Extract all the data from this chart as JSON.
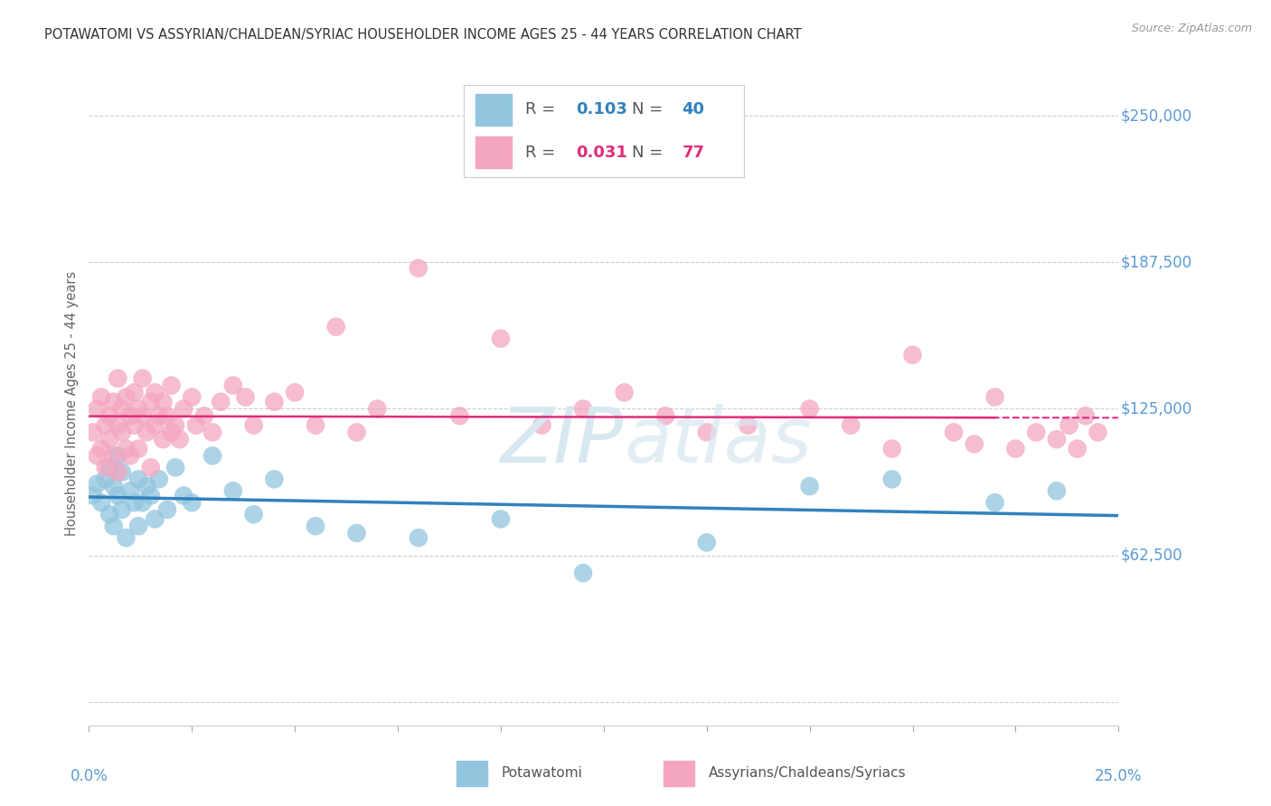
{
  "title": "POTAWATOMI VS ASSYRIAN/CHALDEAN/SYRIAC HOUSEHOLDER INCOME AGES 25 - 44 YEARS CORRELATION CHART",
  "source": "Source: ZipAtlas.com",
  "ylabel": "Householder Income Ages 25 - 44 years",
  "xlim": [
    0.0,
    0.25
  ],
  "ylim": [
    -10000,
    265000
  ],
  "yticks": [
    0,
    62500,
    125000,
    187500,
    250000
  ],
  "ytick_labels": [
    "",
    "$62,500",
    "$125,000",
    "$187,500",
    "$250,000"
  ],
  "xticks": [
    0.0,
    0.025,
    0.05,
    0.075,
    0.1,
    0.125,
    0.15,
    0.175,
    0.2,
    0.225,
    0.25
  ],
  "R_blue": 0.103,
  "N_blue": 40,
  "R_pink": 0.031,
  "N_pink": 77,
  "blue_color": "#92c5de",
  "pink_color": "#f4a6c0",
  "blue_line_color": "#3182bd",
  "pink_line_color": "#de2d7a",
  "background_color": "#ffffff",
  "grid_color": "#cccccc",
  "title_color": "#333333",
  "axis_label_color": "#666666",
  "right_label_color": "#5b9bd5",
  "watermark_color": "#d8e8f0",
  "blue_x": [
    0.001,
    0.002,
    0.003,
    0.004,
    0.005,
    0.005,
    0.006,
    0.006,
    0.007,
    0.007,
    0.008,
    0.008,
    0.009,
    0.01,
    0.011,
    0.012,
    0.012,
    0.013,
    0.014,
    0.015,
    0.016,
    0.017,
    0.019,
    0.021,
    0.023,
    0.025,
    0.03,
    0.035,
    0.04,
    0.045,
    0.055,
    0.065,
    0.08,
    0.1,
    0.12,
    0.15,
    0.175,
    0.195,
    0.22,
    0.235
  ],
  "blue_y": [
    88000,
    93000,
    85000,
    95000,
    80000,
    100000,
    92000,
    75000,
    88000,
    105000,
    82000,
    98000,
    70000,
    90000,
    85000,
    95000,
    75000,
    85000,
    92000,
    88000,
    78000,
    95000,
    82000,
    100000,
    88000,
    85000,
    105000,
    90000,
    80000,
    95000,
    75000,
    72000,
    70000,
    78000,
    55000,
    68000,
    92000,
    95000,
    85000,
    90000
  ],
  "pink_x": [
    0.001,
    0.002,
    0.002,
    0.003,
    0.003,
    0.004,
    0.004,
    0.005,
    0.005,
    0.006,
    0.006,
    0.007,
    0.007,
    0.007,
    0.008,
    0.008,
    0.009,
    0.009,
    0.01,
    0.01,
    0.011,
    0.011,
    0.012,
    0.012,
    0.013,
    0.013,
    0.014,
    0.015,
    0.015,
    0.016,
    0.016,
    0.017,
    0.018,
    0.018,
    0.019,
    0.02,
    0.02,
    0.021,
    0.022,
    0.023,
    0.025,
    0.026,
    0.028,
    0.03,
    0.032,
    0.035,
    0.038,
    0.04,
    0.045,
    0.05,
    0.055,
    0.06,
    0.065,
    0.07,
    0.08,
    0.09,
    0.1,
    0.11,
    0.12,
    0.13,
    0.14,
    0.15,
    0.16,
    0.175,
    0.185,
    0.195,
    0.2,
    0.21,
    0.215,
    0.22,
    0.225,
    0.23,
    0.235,
    0.238,
    0.24,
    0.242,
    0.245
  ],
  "pink_y": [
    115000,
    105000,
    125000,
    108000,
    130000,
    118000,
    100000,
    122000,
    112000,
    128000,
    105000,
    138000,
    118000,
    98000,
    125000,
    115000,
    130000,
    108000,
    122000,
    105000,
    132000,
    118000,
    125000,
    108000,
    138000,
    122000,
    115000,
    128000,
    100000,
    132000,
    118000,
    122000,
    112000,
    128000,
    122000,
    115000,
    135000,
    118000,
    112000,
    125000,
    130000,
    118000,
    122000,
    115000,
    128000,
    135000,
    130000,
    118000,
    128000,
    132000,
    118000,
    160000,
    115000,
    125000,
    185000,
    122000,
    155000,
    118000,
    125000,
    132000,
    122000,
    115000,
    118000,
    125000,
    118000,
    108000,
    148000,
    115000,
    110000,
    130000,
    108000,
    115000,
    112000,
    118000,
    108000,
    122000,
    115000
  ]
}
